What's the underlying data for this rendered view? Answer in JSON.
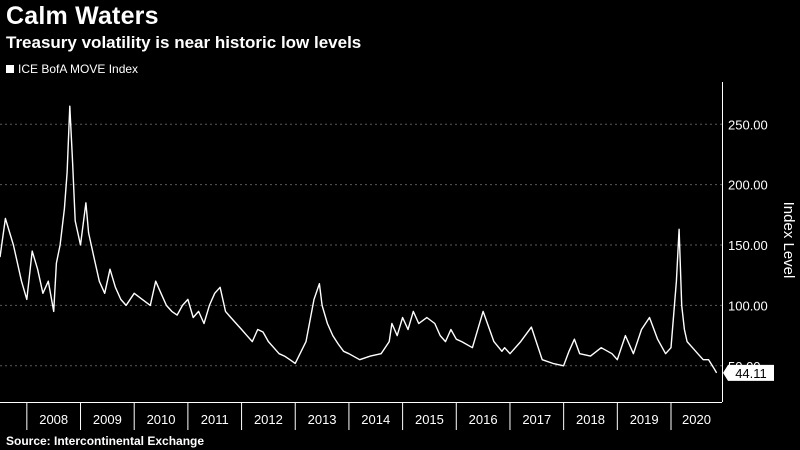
{
  "header": {
    "title": "Calm Waters",
    "subtitle": "Treasury volatility is near historic low levels"
  },
  "footer": {
    "source": "Source: Intercontinental Exchange"
  },
  "colors": {
    "background": "#000000",
    "line": "#ffffff",
    "grid": "#5a5a5a"
  },
  "chart_data": {
    "type": "line",
    "series": [
      {
        "name": "ICE BofA MOVE Index",
        "x": [
          2007.5,
          2007.6,
          2007.75,
          2007.9,
          2008.0,
          2008.1,
          2008.2,
          2008.3,
          2008.4,
          2008.5,
          2008.55,
          2008.62,
          2008.7,
          2008.75,
          2008.8,
          2008.85,
          2008.9,
          2009.0,
          2009.1,
          2009.15,
          2009.25,
          2009.35,
          2009.45,
          2009.55,
          2009.65,
          2009.75,
          2009.85,
          2010.0,
          2010.15,
          2010.3,
          2010.4,
          2010.5,
          2010.6,
          2010.7,
          2010.8,
          2010.9,
          2011.0,
          2011.1,
          2011.2,
          2011.3,
          2011.4,
          2011.5,
          2011.6,
          2011.7,
          2011.8,
          2011.9,
          2012.0,
          2012.1,
          2012.2,
          2012.3,
          2012.4,
          2012.5,
          2012.6,
          2012.7,
          2012.8,
          2012.9,
          2013.0,
          2013.2,
          2013.35,
          2013.45,
          2013.5,
          2013.6,
          2013.7,
          2013.8,
          2013.9,
          2014.0,
          2014.2,
          2014.4,
          2014.6,
          2014.75,
          2014.8,
          2014.9,
          2015.0,
          2015.1,
          2015.2,
          2015.3,
          2015.45,
          2015.6,
          2015.7,
          2015.8,
          2015.9,
          2016.0,
          2016.1,
          2016.3,
          2016.5,
          2016.7,
          2016.85,
          2016.9,
          2017.0,
          2017.2,
          2017.4,
          2017.6,
          2017.8,
          2018.0,
          2018.1,
          2018.2,
          2018.3,
          2018.5,
          2018.7,
          2018.9,
          2019.0,
          2019.15,
          2019.3,
          2019.45,
          2019.6,
          2019.75,
          2019.9,
          2020.0,
          2020.1,
          2020.15,
          2020.2,
          2020.25,
          2020.3,
          2020.4,
          2020.5,
          2020.6,
          2020.7,
          2020.8,
          2020.85
        ],
        "values": [
          140,
          172,
          150,
          120,
          105,
          145,
          130,
          110,
          120,
          95,
          135,
          150,
          180,
          210,
          265,
          220,
          170,
          150,
          185,
          160,
          140,
          120,
          110,
          130,
          115,
          105,
          100,
          110,
          105,
          100,
          120,
          110,
          100,
          95,
          92,
          100,
          105,
          90,
          95,
          85,
          100,
          110,
          115,
          95,
          90,
          85,
          80,
          75,
          70,
          80,
          78,
          70,
          65,
          60,
          58,
          55,
          52,
          70,
          105,
          118,
          100,
          85,
          75,
          68,
          62,
          60,
          55,
          58,
          60,
          70,
          85,
          75,
          90,
          80,
          95,
          85,
          90,
          85,
          75,
          70,
          80,
          72,
          70,
          65,
          95,
          70,
          62,
          65,
          60,
          70,
          82,
          55,
          52,
          50,
          62,
          72,
          60,
          58,
          65,
          60,
          55,
          75,
          60,
          80,
          90,
          72,
          60,
          65,
          120,
          163,
          100,
          80,
          70,
          65,
          60,
          55,
          55,
          48,
          44.11
        ]
      }
    ],
    "last_value_label": "44.11",
    "x_tick_labels": [
      "2008",
      "2009",
      "2010",
      "2011",
      "2012",
      "2013",
      "2014",
      "2015",
      "2016",
      "2017",
      "2018",
      "2019",
      "2020"
    ],
    "y_tick_labels": [
      "50.00",
      "100.00",
      "150.00",
      "200.00",
      "250.00"
    ],
    "y_ticks": [
      50,
      100,
      150,
      200,
      250
    ],
    "ylabel": "Index Level",
    "xlabel": "",
    "ylim": [
      20,
      285
    ],
    "xlim": [
      2007.5,
      2020.95
    ],
    "grid": "horizontal dashed",
    "legend": "top-left"
  }
}
